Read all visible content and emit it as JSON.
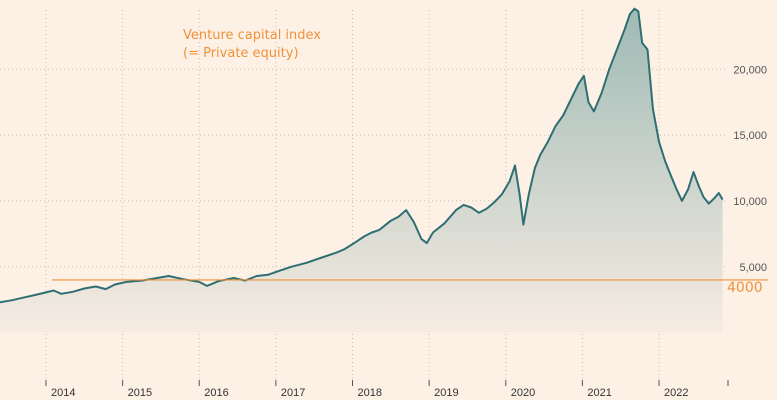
{
  "chart_data": {
    "type": "area",
    "title": "",
    "xlabel": "",
    "ylabel": "",
    "x_ticks": [
      "2014",
      "2015",
      "2016",
      "2017",
      "2018",
      "2019",
      "2020",
      "2021",
      "2022"
    ],
    "y_ticks": [
      "5,000",
      "10,000",
      "15,000",
      "20,000"
    ],
    "y_tick_values": [
      5000,
      10000,
      15000,
      20000
    ],
    "xlim": [
      2013.4,
      2022.9
    ],
    "ylim": [
      -3600,
      24500
    ],
    "grid": true,
    "annotation_lines": [
      "Venture capital index",
      "(= Private equity)"
    ],
    "reference_line": {
      "value": 4000,
      "label": "4000"
    },
    "series": [
      {
        "values": [
          [
            2013.4,
            2300
          ],
          [
            2013.55,
            2450
          ],
          [
            2013.7,
            2650
          ],
          [
            2013.85,
            2850
          ],
          [
            2014.0,
            3050
          ],
          [
            2014.1,
            3200
          ],
          [
            2014.2,
            2950
          ],
          [
            2014.35,
            3100
          ],
          [
            2014.5,
            3350
          ],
          [
            2014.65,
            3500
          ],
          [
            2014.78,
            3300
          ],
          [
            2014.9,
            3650
          ],
          [
            2015.05,
            3850
          ],
          [
            2015.25,
            3950
          ],
          [
            2015.45,
            4150
          ],
          [
            2015.6,
            4300
          ],
          [
            2015.8,
            4050
          ],
          [
            2016.0,
            3850
          ],
          [
            2016.1,
            3550
          ],
          [
            2016.25,
            3900
          ],
          [
            2016.45,
            4150
          ],
          [
            2016.6,
            3950
          ],
          [
            2016.75,
            4300
          ],
          [
            2016.9,
            4400
          ],
          [
            2017.05,
            4700
          ],
          [
            2017.2,
            5000
          ],
          [
            2017.4,
            5300
          ],
          [
            2017.6,
            5700
          ],
          [
            2017.8,
            6100
          ],
          [
            2017.9,
            6350
          ],
          [
            2018.05,
            6900
          ],
          [
            2018.15,
            7300
          ],
          [
            2018.25,
            7600
          ],
          [
            2018.35,
            7800
          ],
          [
            2018.5,
            8500
          ],
          [
            2018.6,
            8800
          ],
          [
            2018.7,
            9300
          ],
          [
            2018.8,
            8400
          ],
          [
            2018.9,
            7100
          ],
          [
            2018.97,
            6800
          ],
          [
            2019.05,
            7600
          ],
          [
            2019.2,
            8300
          ],
          [
            2019.35,
            9300
          ],
          [
            2019.45,
            9700
          ],
          [
            2019.55,
            9500
          ],
          [
            2019.65,
            9100
          ],
          [
            2019.75,
            9400
          ],
          [
            2019.85,
            9900
          ],
          [
            2019.95,
            10500
          ],
          [
            2020.05,
            11500
          ],
          [
            2020.12,
            12700
          ],
          [
            2020.18,
            10500
          ],
          [
            2020.23,
            8200
          ],
          [
            2020.3,
            10500
          ],
          [
            2020.38,
            12500
          ],
          [
            2020.45,
            13500
          ],
          [
            2020.55,
            14500
          ],
          [
            2020.65,
            15700
          ],
          [
            2020.75,
            16500
          ],
          [
            2020.85,
            17700
          ],
          [
            2020.95,
            18900
          ],
          [
            2021.02,
            19500
          ],
          [
            2021.08,
            17500
          ],
          [
            2021.15,
            16800
          ],
          [
            2021.25,
            18200
          ],
          [
            2021.35,
            20000
          ],
          [
            2021.45,
            21500
          ],
          [
            2021.55,
            23000
          ],
          [
            2021.62,
            24200
          ],
          [
            2021.68,
            24600
          ],
          [
            2021.73,
            24400
          ],
          [
            2021.78,
            22000
          ],
          [
            2021.85,
            21500
          ],
          [
            2021.92,
            17000
          ],
          [
            2022.0,
            14500
          ],
          [
            2022.08,
            13000
          ],
          [
            2022.15,
            12000
          ],
          [
            2022.22,
            11000
          ],
          [
            2022.3,
            10000
          ],
          [
            2022.38,
            10900
          ],
          [
            2022.45,
            12200
          ],
          [
            2022.52,
            11100
          ],
          [
            2022.58,
            10300
          ],
          [
            2022.65,
            9800
          ],
          [
            2022.72,
            10200
          ],
          [
            2022.78,
            10600
          ],
          [
            2022.83,
            10100
          ]
        ]
      }
    ]
  }
}
